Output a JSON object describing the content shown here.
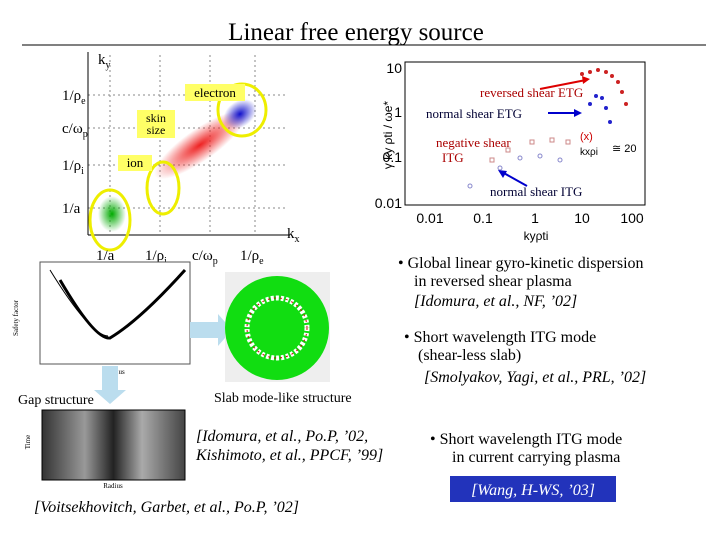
{
  "title": "Linear free energy source",
  "diagram": {
    "y_axis": {
      "text": "k",
      "sub": "y"
    },
    "x_axis": {
      "text": "k",
      "sub": "x"
    },
    "y_ticks": [
      {
        "text": "1/ρ",
        "sub": "e"
      },
      {
        "text": "c/ω",
        "sub": "p"
      },
      {
        "text": "1/ρ",
        "sub": "i"
      },
      {
        "text": "1/a",
        "sub": ""
      }
    ],
    "x_ticks": [
      {
        "text": "1/a",
        "sub": ""
      },
      {
        "text": "1/ρ",
        "sub": "i"
      },
      {
        "text": "c/ω",
        "sub": "p"
      },
      {
        "text": "1/ρ",
        "sub": "e"
      }
    ],
    "labels": {
      "electron": "electron",
      "skin": [
        "skin",
        "size"
      ],
      "ion": "ion"
    }
  },
  "plot": {
    "y_label": "γ ky ρti / ωe*",
    "x_label": "kyρti",
    "y_ticks": [
      "10",
      "1",
      "0.1",
      "0.01"
    ],
    "x_ticks": [
      "0.01",
      "0.1",
      "1",
      "10",
      "100"
    ],
    "annotations": {
      "reversed": "reversed shear ETG",
      "normal_etg": "normal  shear ETG",
      "negative": [
        "negative shear",
        "ITG"
      ],
      "normal_itg": "normal  shear ITG",
      "x": "(x)",
      "approx": "≅ 20",
      "kr": "kxρi"
    }
  },
  "bullets": [
    [
      "• Global linear gyro-kinetic dispersion",
      "in reversed shear plasma",
      "[Idomura, et al., NF, ’02]"
    ],
    [
      "•  Short wavelength ITG mode",
      "(shear-less slab)",
      "[Smolyakov, Yagi, et al., PRL, ’02]"
    ],
    [
      "• Short wavelength ITG mode",
      "in current carrying plasma"
    ]
  ],
  "captions": {
    "gap": "Gap structure",
    "slab": "Slab mode-like structure",
    "safety": "Safety factor",
    "radius": "Radius",
    "time": "Time"
  },
  "refs": {
    "idomura": [
      "[Idomura, et al., Po.P, ’02,",
      "Kishimoto, et al., PPCF, ’99]"
    ],
    "wang": "[Wang, H-WS, ’03]",
    "voitsekhovitch": "[Voitsekhovitch, Garbet, et al., Po.P, ’02]"
  }
}
